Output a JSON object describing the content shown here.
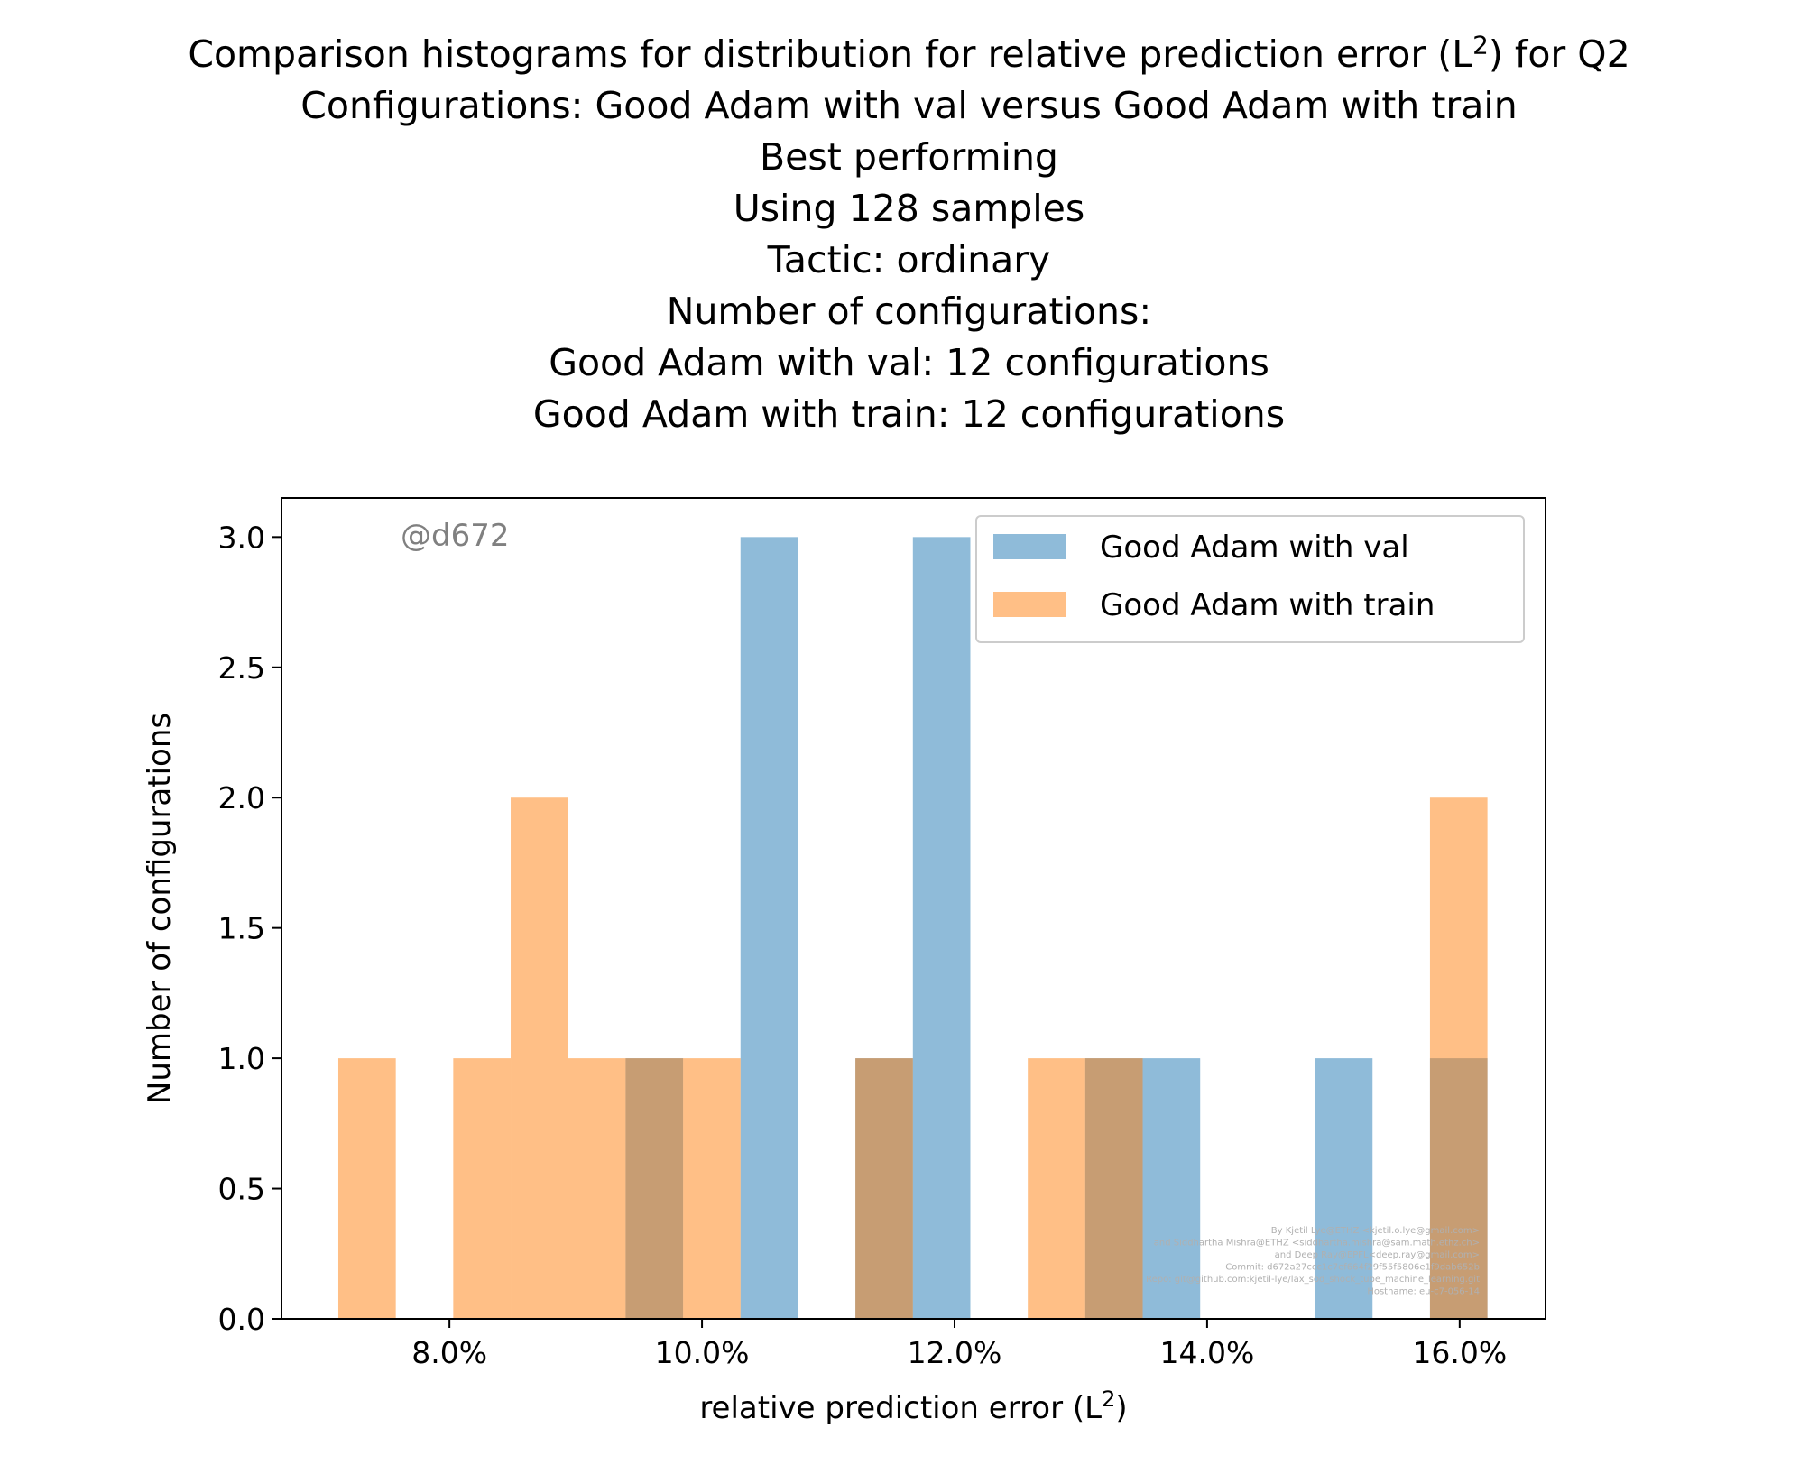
{
  "chart_data": {
    "type": "bar",
    "title_lines": [
      "Comparison histograms for distribution for relative prediction error (L",
      "Configurations: Good Adam with val versus Good Adam with train",
      "Best performing",
      "Using 128 samples",
      "Tactic: ordinary",
      "Number of configurations:",
      "Good Adam with val: 12 configurations",
      "Good Adam with train: 12 configurations"
    ],
    "title_sup": "2",
    "title_tail": ") for Q2",
    "xlabel": "relative prediction error (L",
    "xlabel_sup": "2",
    "xlabel_tail": ")",
    "ylabel": "Number of configurations",
    "xlim": [
      6.67,
      16.68
    ],
    "ylim": [
      0,
      3.15
    ],
    "x_ticks": [
      {
        "value": 8,
        "label": "8.0%"
      },
      {
        "value": 10,
        "label": "10.0%"
      },
      {
        "value": 12,
        "label": "12.0%"
      },
      {
        "value": 14,
        "label": "14.0%"
      },
      {
        "value": 16,
        "label": "16.0%"
      }
    ],
    "y_ticks": [
      {
        "value": 0.0,
        "label": "0.0"
      },
      {
        "value": 0.5,
        "label": "0.5"
      },
      {
        "value": 1.0,
        "label": "1.0"
      },
      {
        "value": 1.5,
        "label": "1.5"
      },
      {
        "value": 2.0,
        "label": "2.0"
      },
      {
        "value": 2.5,
        "label": "2.5"
      },
      {
        "value": 3.0,
        "label": "3.0"
      }
    ],
    "bin_edges": [
      7.12,
      7.575,
      8.03,
      8.485,
      8.94,
      9.395,
      9.85,
      10.305,
      10.76,
      11.215,
      11.67,
      12.125,
      12.58,
      13.035,
      13.49,
      13.945,
      14.4,
      14.855,
      15.31,
      15.765,
      16.22
    ],
    "series": [
      {
        "name": "Good Adam with val",
        "color": "#1f77b4",
        "values": [
          0,
          0,
          0,
          0,
          0,
          1,
          0,
          3,
          0,
          1,
          3,
          0,
          0,
          1,
          1,
          0,
          0,
          1,
          0,
          1
        ]
      },
      {
        "name": "Good Adam with train",
        "color": "#ff7f0e",
        "values": [
          1,
          0,
          1,
          2,
          1,
          1,
          1,
          0,
          0,
          1,
          0,
          0,
          1,
          1,
          0,
          0,
          0,
          0,
          0,
          2
        ]
      }
    ],
    "legend_position": "upper right",
    "bar_alpha": 0.5,
    "annotation": "@d672",
    "footer_lines": [
      "By Kjetil Lye@ETHZ <kjetil.o.lye@gmail.com>",
      "and Siddhartha Mishra@ETHZ <siddhartha.mishra@sam.math.ethz.ch>",
      "and Deep Ray@EPFL<deep.ray@gmail.com>",
      "Commit: d672a27ccc1c7ef664f29f55f5806e1f9dab652b",
      "Repo: git@github.com:kjetil-lye/lax_sod_shock_tube_machine_learning.git",
      "Hostname: eu-c7-056-14"
    ]
  }
}
